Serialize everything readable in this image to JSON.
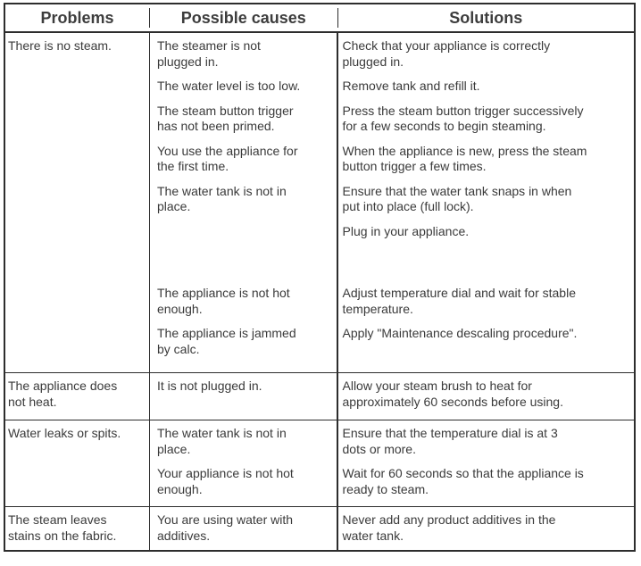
{
  "colors": {
    "text": "#3a3a3a",
    "border": "#2d2d2d",
    "background": "#ffffff"
  },
  "table": {
    "headers": {
      "problems": "Problems",
      "causes": "Possible causes",
      "solutions": "Solutions"
    },
    "rows": [
      {
        "problem": "There is no steam.",
        "pairs": [
          {
            "cause": "The steamer is not\nplugged in.",
            "solution": "Check that your appliance is correctly\nplugged in."
          },
          {
            "cause": "The water level is too low.",
            "solution": "Remove tank and refill it."
          },
          {
            "cause": "The steam button trigger\nhas not been primed.",
            "solution": "Press the steam button trigger successively\nfor a few seconds to begin steaming."
          },
          {
            "cause": "You use the appliance for\nthe first time.",
            "solution": "When the appliance is new, press the steam\nbutton trigger a few times."
          },
          {
            "cause": "The water tank is not in\nplace.",
            "solution": "Ensure that the water tank snaps in when\nput into place (full lock)."
          },
          {
            "cause": "",
            "solution": "Plug in your appliance."
          },
          {
            "cause": "The appliance is not hot\nenough.",
            "solution": "Adjust temperature dial and wait for stable\ntemperature."
          },
          {
            "cause": "The appliance is jammed\nby calc.",
            "solution": "Apply \"Maintenance descaling procedure\"."
          }
        ]
      },
      {
        "problem": "The appliance does\nnot heat.",
        "pairs": [
          {
            "cause": "It is not plugged in.",
            "solution": "Allow your steam brush to heat for\napproximately 60 seconds before using."
          }
        ]
      },
      {
        "problem": "Water leaks or spits.",
        "pairs": [
          {
            "cause": "The water tank is not in\nplace.",
            "solution": "Ensure that the temperature dial is at 3\ndots or more."
          },
          {
            "cause": "Your appliance is not hot\nenough.",
            "solution": "Wait for 60 seconds so that the appliance is\nready to steam."
          }
        ]
      },
      {
        "problem": "The steam leaves\nstains on the fabric.",
        "pairs": [
          {
            "cause": "You are using water with\nadditives.",
            "solution": "Never add any product additives in the\nwater tank."
          }
        ]
      }
    ]
  }
}
